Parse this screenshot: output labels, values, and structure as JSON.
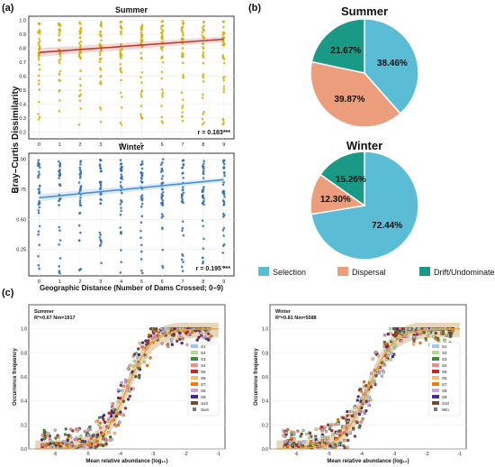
{
  "panels": {
    "a": "(a)",
    "b": "(b)",
    "c": "(c)"
  },
  "colors": {
    "summer_points": "#d4b106",
    "summer_line": "#c0392b",
    "winter_points": "#2f6db5",
    "winter_line": "#4a90d9",
    "selection": "#5bbcd6",
    "dispersal": "#ec9e7c",
    "drift": "#1a9a86",
    "fit_line": "#e8a23a",
    "fit_band": "#c9a26b"
  },
  "chart_data": [
    {
      "id": "a_summer",
      "type": "scatter",
      "title": "Summer",
      "ylabel": "Bray–Curtis Dissimilarity",
      "xlabel": "",
      "x_ticks": [
        "0",
        "1",
        "2",
        "3",
        "4",
        "5",
        "6",
        "7",
        "8",
        "9"
      ],
      "y_ticks": [
        "0.2",
        "0.3",
        "0.4",
        "0.5",
        "0.6",
        "0.7",
        "0.8",
        "0.9",
        "1.0"
      ],
      "xlim": [
        -0.5,
        9.5
      ],
      "ylim": [
        0.15,
        1.03
      ],
      "trend": {
        "x": [
          0,
          9
        ],
        "y": [
          0.77,
          0.865
        ]
      },
      "annotation": "r = 0.183***"
    },
    {
      "id": "a_winter",
      "type": "scatter",
      "title": "Winter",
      "xlabel": "Geographic Distance (Number of Dams Crossed; 0–9)",
      "x_ticks": [
        "0",
        "1",
        "2",
        "3",
        "4",
        "5",
        "6",
        "7",
        "8",
        "9"
      ],
      "y_ticks": [
        "0.25",
        "0.50",
        "0.75",
        "1.00"
      ],
      "xlim": [
        -0.5,
        9.5
      ],
      "ylim": [
        0.03,
        1.05
      ],
      "trend": {
        "x": [
          0,
          9
        ],
        "y": [
          0.68,
          0.83
        ]
      },
      "annotation": "r = 0.195 ***"
    },
    {
      "id": "b_summer",
      "type": "pie",
      "title": "Summer",
      "labels": [
        "Selection",
        "Dispersal",
        "Drift/Undominated"
      ],
      "values": [
        38.46,
        39.87,
        21.67
      ],
      "value_labels": [
        "38.46%",
        "39.87%",
        "21.67%"
      ]
    },
    {
      "id": "b_winter",
      "type": "pie",
      "title": "Winter",
      "labels": [
        "Selection",
        "Dispersal",
        "Drift/Undominated"
      ],
      "values": [
        72.44,
        12.3,
        15.26
      ],
      "value_labels": [
        "72.44%",
        "12.30%",
        "15.26%"
      ],
      "legend": [
        "Selection",
        "Dispersal",
        "Drift/Undominated"
      ]
    },
    {
      "id": "c_summer",
      "type": "scatter",
      "title": "Summer",
      "stats": "R²=0.67     Nm=1917",
      "xlabel": "Mean relative abundance (log₁₀)",
      "ylabel": "Occurrence frequency",
      "x_ticks": [
        "-6",
        "-5",
        "-4",
        "-3",
        "-2",
        "-1"
      ],
      "y_ticks": [
        "0.0",
        "0.2",
        "0.4",
        "0.6",
        "0.8",
        "1.0"
      ],
      "xlim": [
        -6.8,
        -0.8
      ],
      "ylim": [
        0,
        1.2
      ],
      "legend": [
        "S1",
        "S2",
        "S3",
        "S4",
        "S5",
        "S6",
        "S7",
        "S8",
        "S9",
        "S10",
        "Sum"
      ]
    },
    {
      "id": "c_winter",
      "type": "scatter",
      "title": "Winter",
      "stats": "R²=0.81     Nm=5588",
      "xlabel": "Mean relative abundance (log₁₀)",
      "ylabel": "Occurrence frequency",
      "x_ticks": [
        "-6",
        "-5",
        "-4",
        "-3",
        "-2",
        "-1"
      ],
      "y_ticks": [
        "0.0",
        "0.2",
        "0.4",
        "0.6",
        "0.8",
        "1.0"
      ],
      "xlim": [
        -6.8,
        -0.8
      ],
      "ylim": [
        0,
        1.2
      ],
      "legend": [
        "S1",
        "S2",
        "S3",
        "S4",
        "S5",
        "S6",
        "S7",
        "S8",
        "S9",
        "S10",
        "Win"
      ]
    }
  ],
  "series_colors": [
    "#9ec6e8",
    "#b5d98f",
    "#3d8b3d",
    "#f08c8c",
    "#c62828",
    "#f3c26d",
    "#f57c00",
    "#c7a6d8",
    "#4b2a85",
    "#7a4a2a"
  ]
}
